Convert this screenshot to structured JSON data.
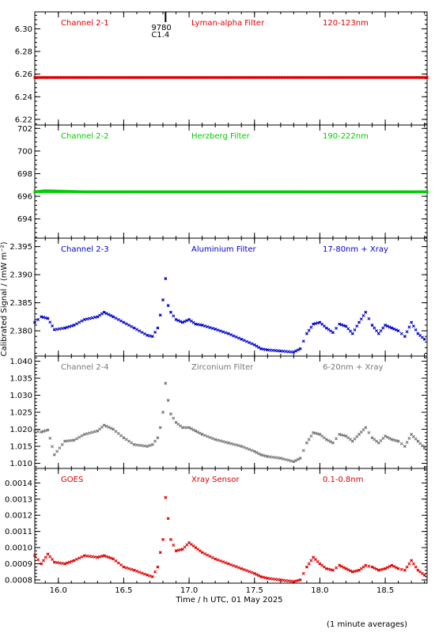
{
  "chart_data": {
    "type": "scatter",
    "xlabel": "Time / h UTC, 01 May 2025",
    "ylabel": "Calibrated Signal / (mW m⁻²)",
    "footnote": "(1 minute averages)",
    "xlim": [
      15.82,
      18.82
    ],
    "xticks": [
      16.0,
      16.5,
      17.0,
      17.5,
      18.0,
      18.5
    ],
    "xtick_labels": [
      "16.0",
      "16.5",
      "17.0",
      "17.5",
      "18.0",
      "18.5"
    ],
    "flare_marker": {
      "x": 16.82,
      "labels": [
        "9780",
        "C1.4"
      ]
    },
    "panels": [
      {
        "channel": "Channel 2-1",
        "filter": "Lyman-alpha Filter",
        "band": "120-123nm",
        "color": "#dd0000",
        "ylim": [
          6.215,
          6.315
        ],
        "yticks": [
          6.22,
          6.24,
          6.26,
          6.28,
          6.3
        ],
        "ytick_labels": [
          "6.22",
          "6.24",
          "6.26",
          "6.28",
          "6.30"
        ],
        "x": [
          15.82,
          16.2,
          16.6,
          17.0,
          17.4,
          17.9,
          18.3,
          18.82
        ],
        "y": [
          6.257,
          6.257,
          6.257,
          6.257,
          6.257,
          6.257,
          6.257,
          6.257
        ]
      },
      {
        "channel": "Channel 2-2",
        "filter": "Herzberg Filter",
        "band": "190-222nm",
        "color": "#00cc00",
        "ylim": [
          692.3,
          702.3
        ],
        "yticks": [
          694,
          696,
          698,
          700,
          702
        ],
        "ytick_labels": [
          "694",
          "696",
          "698",
          "700",
          "702"
        ],
        "x": [
          15.82,
          15.9,
          16.2,
          16.6,
          17.0,
          17.4,
          17.9,
          18.3,
          18.82
        ],
        "y": [
          696.4,
          696.5,
          696.4,
          696.4,
          696.4,
          696.4,
          696.4,
          696.4,
          696.4
        ]
      },
      {
        "channel": "Channel 2-3",
        "filter": "Aluminium Filter",
        "band": "17-80nm + Xray",
        "color": "#0000cc",
        "ylim": [
          2.3755,
          2.3965
        ],
        "yticks": [
          2.38,
          2.385,
          2.39,
          2.395
        ],
        "ytick_labels": [
          "2.380",
          "2.385",
          "2.390",
          "2.395"
        ],
        "x": [
          15.82,
          15.87,
          15.92,
          15.97,
          16.05,
          16.12,
          16.2,
          16.3,
          16.35,
          16.42,
          16.5,
          16.58,
          16.68,
          16.72,
          16.76,
          16.78,
          16.8,
          16.82,
          16.84,
          16.86,
          16.9,
          16.95,
          17.0,
          17.05,
          17.1,
          17.2,
          17.3,
          17.4,
          17.5,
          17.55,
          17.6,
          17.7,
          17.8,
          17.85,
          17.9,
          17.95,
          18.0,
          18.05,
          18.1,
          18.15,
          18.2,
          18.25,
          18.3,
          18.35,
          18.4,
          18.45,
          18.5,
          18.55,
          18.6,
          18.65,
          18.7,
          18.75,
          18.8
        ],
        "y": [
          2.3815,
          2.3825,
          2.3822,
          2.3802,
          2.3805,
          2.381,
          2.382,
          2.3825,
          2.3833,
          2.3825,
          2.3815,
          2.3805,
          2.3792,
          2.379,
          2.3805,
          2.3828,
          2.3855,
          2.3893,
          2.3845,
          2.3833,
          2.382,
          2.3815,
          2.382,
          2.3812,
          2.381,
          2.3803,
          2.3795,
          2.3785,
          2.3775,
          2.3768,
          2.3766,
          2.3764,
          2.3762,
          2.3768,
          2.3795,
          2.3812,
          2.3815,
          2.3805,
          2.3797,
          2.3812,
          2.3808,
          2.3795,
          2.3815,
          2.3833,
          2.381,
          2.3795,
          2.381,
          2.3805,
          2.38,
          2.379,
          2.3815,
          2.3795,
          2.3785
        ]
      },
      {
        "channel": "Channel 2-4",
        "filter": "Zirconium Filter",
        "band": "6-20nm + Xray",
        "color": "#777777",
        "ylim": [
          1.0085,
          1.0415
        ],
        "yticks": [
          1.01,
          1.015,
          1.02,
          1.025,
          1.03,
          1.035,
          1.04
        ],
        "ytick_labels": [
          "1.010",
          "1.015",
          "1.020",
          "1.025",
          "1.030",
          "1.035",
          "1.040"
        ],
        "x": [
          15.82,
          15.87,
          15.92,
          15.97,
          16.05,
          16.12,
          16.2,
          16.3,
          16.35,
          16.42,
          16.5,
          16.58,
          16.68,
          16.72,
          16.76,
          16.78,
          16.8,
          16.82,
          16.84,
          16.86,
          16.9,
          16.95,
          17.0,
          17.05,
          17.1,
          17.2,
          17.3,
          17.4,
          17.5,
          17.55,
          17.6,
          17.7,
          17.8,
          17.85,
          17.9,
          17.95,
          18.0,
          18.05,
          18.1,
          18.15,
          18.2,
          18.25,
          18.3,
          18.35,
          18.4,
          18.45,
          18.5,
          18.55,
          18.6,
          18.65,
          18.7,
          18.75,
          18.8
        ],
        "y": [
          1.0195,
          1.0192,
          1.0198,
          1.0125,
          1.0165,
          1.0168,
          1.0185,
          1.0195,
          1.0212,
          1.02,
          1.0175,
          1.0155,
          1.015,
          1.0155,
          1.0175,
          1.0205,
          1.025,
          1.0335,
          1.0285,
          1.0245,
          1.022,
          1.0205,
          1.0205,
          1.0195,
          1.0185,
          1.017,
          1.016,
          1.015,
          1.0135,
          1.0125,
          1.012,
          1.0115,
          1.0105,
          1.0115,
          1.016,
          1.019,
          1.0185,
          1.017,
          1.016,
          1.0185,
          1.018,
          1.0165,
          1.0185,
          1.0205,
          1.0175,
          1.016,
          1.018,
          1.017,
          1.0165,
          1.015,
          1.0185,
          1.0165,
          1.0145
        ]
      },
      {
        "channel": "GOES",
        "filter": "Xray Sensor",
        "band": "0.1-0.8nm",
        "color": "#dd0000",
        "ylim": [
          0.00078,
          0.00149
        ],
        "yticks": [
          0.0008,
          0.0009,
          0.001,
          0.0011,
          0.0012,
          0.0013,
          0.0014
        ],
        "ytick_labels": [
          "0.0008",
          "0.0009",
          "0.0010",
          "0.0011",
          "0.0012",
          "0.0013",
          "0.0014"
        ],
        "x": [
          15.82,
          15.87,
          15.92,
          15.97,
          16.05,
          16.12,
          16.2,
          16.3,
          16.35,
          16.42,
          16.5,
          16.58,
          16.68,
          16.72,
          16.76,
          16.78,
          16.8,
          16.82,
          16.84,
          16.86,
          16.9,
          16.95,
          17.0,
          17.05,
          17.1,
          17.2,
          17.3,
          17.4,
          17.5,
          17.55,
          17.6,
          17.7,
          17.8,
          17.85,
          17.9,
          17.95,
          18.0,
          18.05,
          18.1,
          18.15,
          18.2,
          18.25,
          18.3,
          18.35,
          18.4,
          18.45,
          18.5,
          18.55,
          18.6,
          18.65,
          18.7,
          18.75,
          18.8
        ],
        "y": [
          0.00095,
          0.0009,
          0.00096,
          0.00091,
          0.0009,
          0.00092,
          0.00095,
          0.00094,
          0.00095,
          0.00093,
          0.00088,
          0.00086,
          0.00083,
          0.00082,
          0.00088,
          0.00097,
          0.00105,
          0.00131,
          0.00118,
          0.00105,
          0.00098,
          0.00099,
          0.00103,
          0.001,
          0.00097,
          0.00093,
          0.0009,
          0.00087,
          0.00084,
          0.00082,
          0.00081,
          0.0008,
          0.00079,
          0.0008,
          0.00088,
          0.00094,
          0.0009,
          0.00087,
          0.00086,
          0.00089,
          0.00087,
          0.00085,
          0.00086,
          0.00089,
          0.00088,
          0.00086,
          0.00087,
          0.00089,
          0.00087,
          0.00086,
          0.00092,
          0.00086,
          0.00083
        ]
      }
    ]
  }
}
